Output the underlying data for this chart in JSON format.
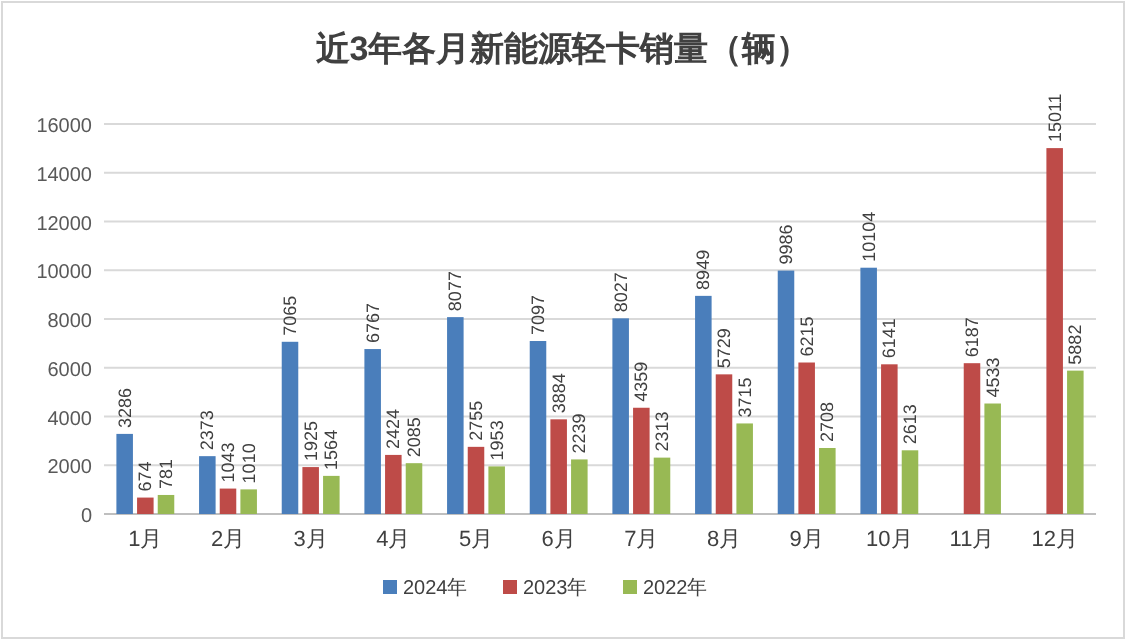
{
  "chart_data": {
    "type": "bar",
    "title": "近3年各月新能源轻卡销量（辆）",
    "categories": [
      "1月",
      "2月",
      "3月",
      "4月",
      "5月",
      "6月",
      "7月",
      "8月",
      "9月",
      "10月",
      "11月",
      "12月"
    ],
    "series": [
      {
        "name": "2024年",
        "color": "#4a7ebb",
        "values": [
          3286,
          2373,
          7065,
          6767,
          8077,
          7097,
          8027,
          8949,
          9986,
          10104,
          null,
          null
        ]
      },
      {
        "name": "2023年",
        "color": "#be4b48",
        "values": [
          674,
          1043,
          1925,
          2424,
          2755,
          3884,
          4359,
          5729,
          6215,
          6141,
          6187,
          15011
        ]
      },
      {
        "name": "2022年",
        "color": "#98b954",
        "values": [
          781,
          1010,
          1564,
          2085,
          1953,
          2239,
          2313,
          3715,
          2708,
          2613,
          4533,
          5882
        ]
      }
    ],
    "ylim": [
      0,
      16000
    ],
    "yticks": [
      0,
      2000,
      4000,
      6000,
      8000,
      10000,
      12000,
      14000,
      16000
    ],
    "grid": "y",
    "legend": "bottom",
    "data_labels": true
  }
}
